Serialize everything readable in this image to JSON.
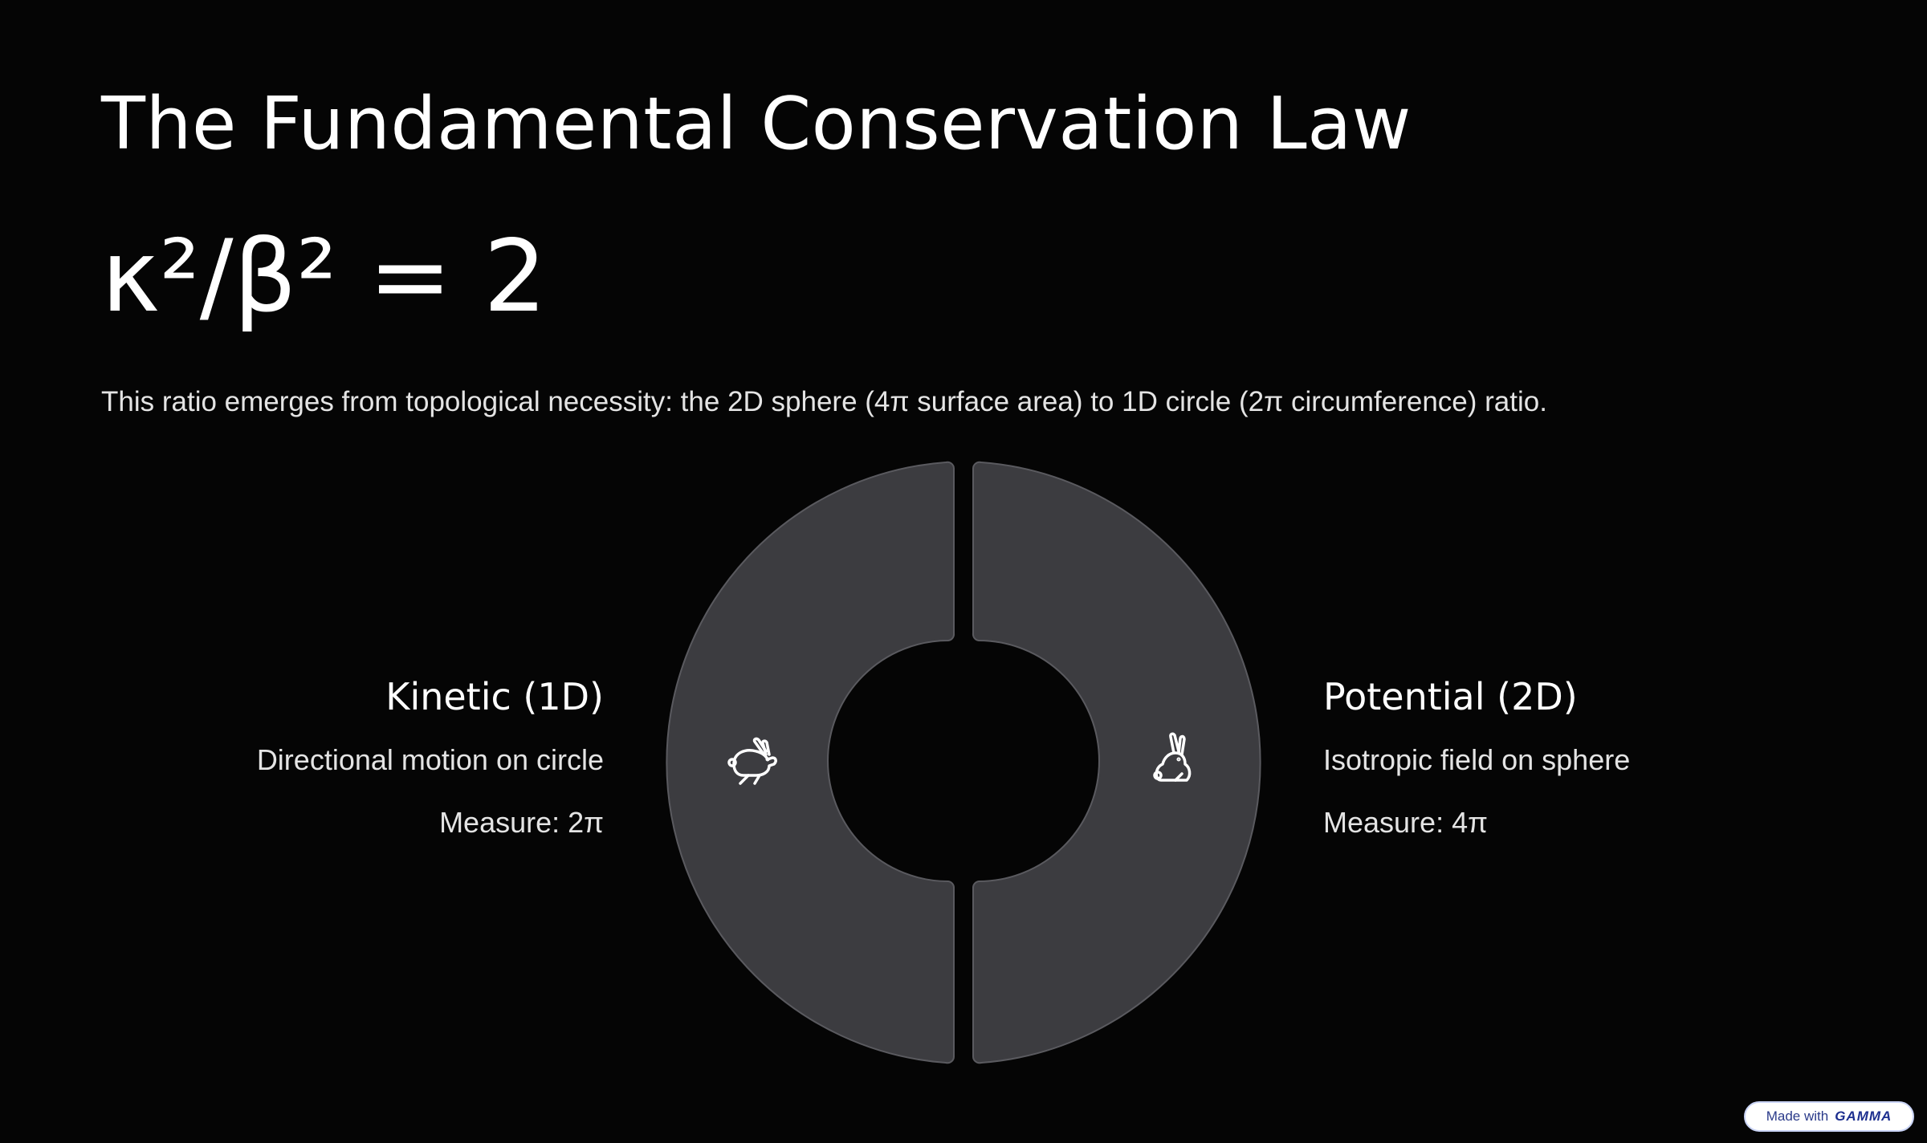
{
  "slide": {
    "title": "The Fundamental Conservation Law",
    "formula": "κ²/β² = 2",
    "description": "This ratio emerges from topological necessity: the 2D sphere (4π surface area) to 1D circle (2π circumference) ratio."
  },
  "kinetic": {
    "title": "Kinetic (1D)",
    "subtitle": "Directional motion on circle",
    "measure": "Measure: 2π",
    "icon": "running-rabbit-icon"
  },
  "potential": {
    "title": "Potential (2D)",
    "subtitle": "Isotropic field on sphere",
    "measure": "Measure: 4π",
    "icon": "sitting-rabbit-icon"
  },
  "colors": {
    "background": "#050505",
    "segment_fill": "#3c3c40",
    "segment_stroke": "#5a5a5f",
    "text": "#ffffff"
  },
  "badge": {
    "label": "Made with",
    "brand": "GAMMA"
  }
}
